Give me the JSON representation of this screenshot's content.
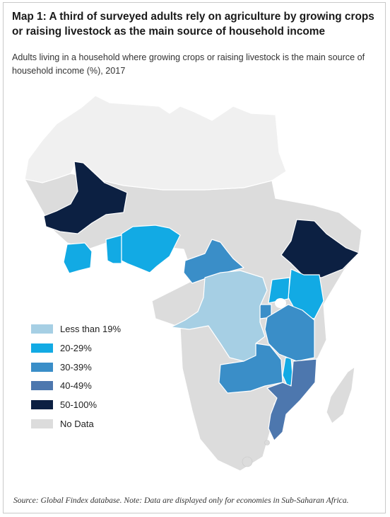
{
  "title": "Map 1: A third of surveyed adults rely on agriculture by growing crops or raising livestock as the main source of household income",
  "subtitle": "Adults living in a household where growing crops or raising livestock is the main source of household income (%), 2017",
  "source": "Source: Global Findex database. Note: Data are displayed only for economies in Sub-Saharan Africa.",
  "colors": {
    "lt19": "#a6cfe4",
    "p20_29": "#12aae4",
    "p30_39": "#3a8ec8",
    "p40_49": "#4d77ae",
    "p50_100": "#0c2042",
    "nodata": "#dcdcdc",
    "north": "#f0f0f0",
    "border": "#ffffff"
  },
  "legend": [
    {
      "label": "Less than 19%",
      "color_key": "lt19"
    },
    {
      "label": "20-29%",
      "color_key": "p20_29"
    },
    {
      "label": "30-39%",
      "color_key": "p30_39"
    },
    {
      "label": "40-49%",
      "color_key": "p40_49"
    },
    {
      "label": "50-100%",
      "color_key": "p50_100"
    },
    {
      "label": "No Data",
      "color_key": "nodata"
    }
  ]
}
